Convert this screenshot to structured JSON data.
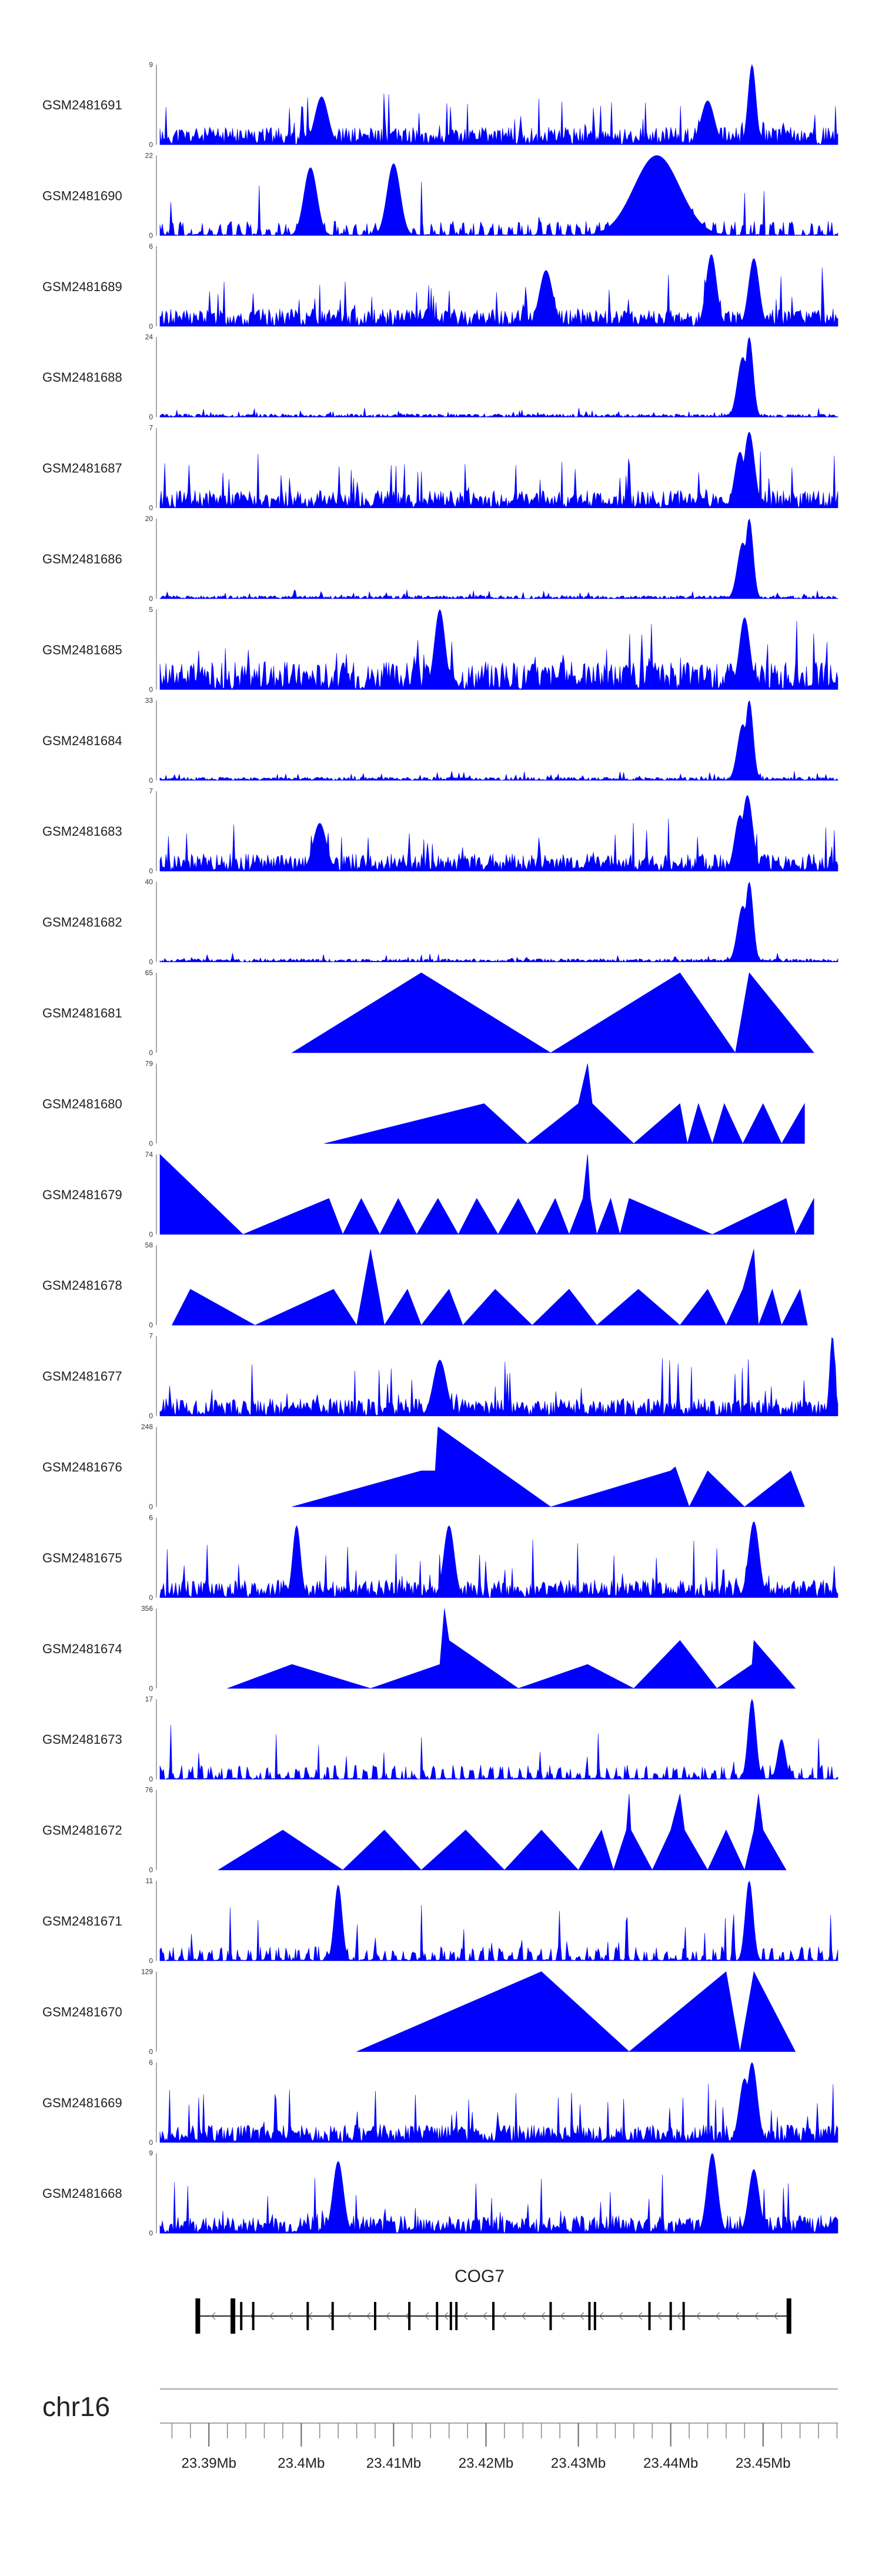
{
  "chart_data": {
    "type": "area",
    "title": "",
    "chromosome": "chr16",
    "x_range_mb": [
      23.3847,
      23.4581
    ],
    "series_color": "#0000ff",
    "tracks": [
      {
        "name": "GSM2481691",
        "max": 9,
        "style": "dense",
        "seed": 11,
        "peaks": [
          [
            23.4488,
            1.0,
            0.0006
          ],
          [
            23.444,
            0.55,
            0.001
          ],
          [
            23.4022,
            0.6,
            0.001
          ]
        ]
      },
      {
        "name": "GSM2481690",
        "max": 22,
        "style": "sparse",
        "seed": 12,
        "peaks": [
          [
            23.4385,
            1.0,
            0.0035
          ],
          [
            23.41,
            0.9,
            0.001
          ],
          [
            23.401,
            0.85,
            0.001
          ]
        ]
      },
      {
        "name": "GSM2481689",
        "max": 6,
        "style": "dense",
        "seed": 13,
        "peaks": [
          [
            23.4444,
            0.9,
            0.0008
          ],
          [
            23.449,
            0.85,
            0.0008
          ],
          [
            23.4265,
            0.7,
            0.001
          ]
        ]
      },
      {
        "name": "GSM2481688",
        "max": 24,
        "style": "dense_low",
        "seed": 14,
        "peaks": [
          [
            23.4485,
            1.0,
            0.0006
          ],
          [
            23.4478,
            0.75,
            0.0008
          ]
        ]
      },
      {
        "name": "GSM2481687",
        "max": 7,
        "style": "dense",
        "seed": 15,
        "peaks": [
          [
            23.4485,
            0.95,
            0.0008
          ],
          [
            23.4475,
            0.7,
            0.0008
          ]
        ]
      },
      {
        "name": "GSM2481686",
        "max": 20,
        "style": "dense_low",
        "seed": 16,
        "peaks": [
          [
            23.4485,
            1.0,
            0.0006
          ],
          [
            23.4478,
            0.7,
            0.0008
          ]
        ]
      },
      {
        "name": "GSM2481685",
        "max": 5,
        "style": "dense_high",
        "seed": 17,
        "peaks": [
          [
            23.415,
            1.0,
            0.0008
          ],
          [
            23.448,
            0.9,
            0.0008
          ]
        ]
      },
      {
        "name": "GSM2481684",
        "max": 33,
        "style": "dense_low",
        "seed": 18,
        "peaks": [
          [
            23.4485,
            1.0,
            0.0006
          ],
          [
            23.4478,
            0.7,
            0.0008
          ]
        ]
      },
      {
        "name": "GSM2481683",
        "max": 7,
        "style": "dense",
        "seed": 19,
        "peaks": [
          [
            23.4483,
            0.95,
            0.0008
          ],
          [
            23.4475,
            0.7,
            0.0008
          ],
          [
            23.402,
            0.6,
            0.001
          ]
        ]
      },
      {
        "name": "GSM2481682",
        "max": 40,
        "style": "dense_low",
        "seed": 20,
        "peaks": [
          [
            23.4485,
            1.0,
            0.0006
          ],
          [
            23.4478,
            0.7,
            0.0008
          ]
        ]
      },
      {
        "name": "GSM2481681",
        "max": 65,
        "style": "triangles",
        "points": [
          [
            23.399,
            0
          ],
          [
            23.413,
            1.0
          ],
          [
            23.427,
            0
          ],
          [
            23.441,
            1.0
          ],
          [
            23.447,
            0
          ],
          [
            23.4485,
            1.0
          ],
          [
            23.4555,
            0
          ]
        ]
      },
      {
        "name": "GSM2481680",
        "max": 79,
        "style": "triangles",
        "points": [
          [
            23.4025,
            0
          ],
          [
            23.4198,
            0.5
          ],
          [
            23.4245,
            0
          ],
          [
            23.43,
            0.5
          ],
          [
            23.431,
            1.0
          ],
          [
            23.4315,
            0.5
          ],
          [
            23.436,
            0
          ],
          [
            23.441,
            0.5
          ],
          [
            23.4418,
            0
          ],
          [
            23.443,
            0.5
          ],
          [
            23.4445,
            0
          ],
          [
            23.4458,
            0.5
          ],
          [
            23.4478,
            0
          ],
          [
            23.45,
            0.5
          ],
          [
            23.452,
            0
          ],
          [
            23.4545,
            0.5
          ],
          [
            23.4545,
            0
          ]
        ]
      },
      {
        "name": "GSM2481679",
        "max": 74,
        "style": "triangles",
        "points": [
          [
            23.3847,
            1.0
          ],
          [
            23.3937,
            0
          ],
          [
            23.403,
            0.45
          ],
          [
            23.4045,
            0
          ],
          [
            23.4065,
            0.45
          ],
          [
            23.4085,
            0
          ],
          [
            23.4105,
            0.45
          ],
          [
            23.4125,
            0
          ],
          [
            23.4148,
            0.45
          ],
          [
            23.417,
            0
          ],
          [
            23.419,
            0.45
          ],
          [
            23.4213,
            0
          ],
          [
            23.4235,
            0.45
          ],
          [
            23.4255,
            0
          ],
          [
            23.4275,
            0.45
          ],
          [
            23.429,
            0
          ],
          [
            23.4305,
            0.45
          ],
          [
            23.431,
            1.0
          ],
          [
            23.4313,
            0.45
          ],
          [
            23.432,
            0
          ],
          [
            23.4335,
            0.45
          ],
          [
            23.4345,
            0
          ],
          [
            23.4355,
            0.45
          ],
          [
            23.4445,
            0
          ],
          [
            23.4525,
            0.45
          ],
          [
            23.4535,
            0
          ],
          [
            23.4555,
            0.45
          ],
          [
            23.4555,
            0
          ]
        ]
      },
      {
        "name": "GSM2481678",
        "max": 58,
        "style": "triangles",
        "points": [
          [
            23.386,
            0
          ],
          [
            23.388,
            0.45
          ],
          [
            23.395,
            0
          ],
          [
            23.4035,
            0.45
          ],
          [
            23.406,
            0
          ],
          [
            23.4075,
            0.95
          ],
          [
            23.409,
            0
          ],
          [
            23.4115,
            0.45
          ],
          [
            23.413,
            0
          ],
          [
            23.416,
            0.45
          ],
          [
            23.4175,
            0
          ],
          [
            23.421,
            0.45
          ],
          [
            23.425,
            0
          ],
          [
            23.429,
            0.45
          ],
          [
            23.432,
            0
          ],
          [
            23.4365,
            0.45
          ],
          [
            23.441,
            0
          ],
          [
            23.444,
            0.45
          ],
          [
            23.446,
            0
          ],
          [
            23.4478,
            0.45
          ],
          [
            23.449,
            0.95
          ],
          [
            23.4495,
            0
          ],
          [
            23.451,
            0.45
          ],
          [
            23.452,
            0
          ],
          [
            23.454,
            0.45
          ],
          [
            23.4548,
            0
          ]
        ]
      },
      {
        "name": "GSM2481677",
        "max": 7,
        "style": "dense",
        "seed": 21,
        "peaks": [
          [
            23.4575,
            1.0,
            0.0004
          ],
          [
            23.415,
            0.7,
            0.001
          ]
        ]
      },
      {
        "name": "GSM2481676",
        "max": 248,
        "style": "triangles",
        "points": [
          [
            23.399,
            0
          ],
          [
            23.413,
            0.45
          ],
          [
            23.4145,
            0.45
          ],
          [
            23.4148,
            1.0
          ],
          [
            23.427,
            0
          ],
          [
            23.44,
            0.45
          ],
          [
            23.4405,
            0.5
          ],
          [
            23.442,
            0
          ],
          [
            23.444,
            0.45
          ],
          [
            23.448,
            0
          ],
          [
            23.453,
            0.45
          ],
          [
            23.4545,
            0
          ]
        ]
      },
      {
        "name": "GSM2481675",
        "max": 6,
        "style": "dense",
        "seed": 22,
        "peaks": [
          [
            23.449,
            0.95,
            0.0008
          ],
          [
            23.3995,
            0.9,
            0.0006
          ],
          [
            23.416,
            0.9,
            0.0008
          ]
        ]
      },
      {
        "name": "GSM2481674",
        "max": 356,
        "style": "triangles",
        "points": [
          [
            23.392,
            0
          ],
          [
            23.399,
            0.3
          ],
          [
            23.4075,
            0
          ],
          [
            23.415,
            0.3
          ],
          [
            23.4155,
            1.0
          ],
          [
            23.416,
            0.6
          ],
          [
            23.4235,
            0
          ],
          [
            23.431,
            0.3
          ],
          [
            23.436,
            0
          ],
          [
            23.441,
            0.6
          ],
          [
            23.445,
            0
          ],
          [
            23.4488,
            0.3
          ],
          [
            23.449,
            0.6
          ],
          [
            23.4535,
            0
          ]
        ]
      },
      {
        "name": "GSM2481673",
        "max": 17,
        "style": "sparse",
        "seed": 23,
        "peaks": [
          [
            23.4488,
            1.0,
            0.0006
          ],
          [
            23.452,
            0.5,
            0.0006
          ]
        ]
      },
      {
        "name": "GSM2481672",
        "max": 76,
        "style": "triangles",
        "points": [
          [
            23.391,
            0
          ],
          [
            23.398,
            0.5
          ],
          [
            23.4045,
            0
          ],
          [
            23.409,
            0.5
          ],
          [
            23.413,
            0
          ],
          [
            23.4178,
            0.5
          ],
          [
            23.422,
            0
          ],
          [
            23.426,
            0.5
          ],
          [
            23.43,
            0
          ],
          [
            23.4325,
            0.5
          ],
          [
            23.4338,
            0
          ],
          [
            23.4352,
            0.5
          ],
          [
            23.4355,
            0.95
          ],
          [
            23.4357,
            0.5
          ],
          [
            23.438,
            0
          ],
          [
            23.44,
            0.5
          ],
          [
            23.441,
            0.95
          ],
          [
            23.4415,
            0.5
          ],
          [
            23.444,
            0
          ],
          [
            23.446,
            0.5
          ],
          [
            23.448,
            0
          ],
          [
            23.449,
            0.5
          ],
          [
            23.4495,
            0.95
          ],
          [
            23.45,
            0.5
          ],
          [
            23.4525,
            0
          ]
        ]
      },
      {
        "name": "GSM2481671",
        "max": 11,
        "style": "sparse",
        "seed": 24,
        "peaks": [
          [
            23.4485,
            1.0,
            0.0006
          ],
          [
            23.404,
            0.95,
            0.0006
          ]
        ]
      },
      {
        "name": "GSM2481670",
        "max": 129,
        "style": "triangles",
        "points": [
          [
            23.406,
            0
          ],
          [
            23.426,
            1.0
          ],
          [
            23.4355,
            0
          ],
          [
            23.446,
            1.0
          ],
          [
            23.4475,
            0
          ],
          [
            23.449,
            1.0
          ],
          [
            23.4535,
            0
          ]
        ]
      },
      {
        "name": "GSM2481669",
        "max": 6,
        "style": "dense",
        "seed": 25,
        "peaks": [
          [
            23.4488,
            1.0,
            0.0008
          ],
          [
            23.448,
            0.8,
            0.0008
          ]
        ]
      },
      {
        "name": "GSM2481668",
        "max": 9,
        "style": "dense",
        "seed": 26,
        "peaks": [
          [
            23.4445,
            1.0,
            0.0008
          ],
          [
            23.404,
            0.9,
            0.0008
          ],
          [
            23.449,
            0.8,
            0.0008
          ]
        ]
      }
    ],
    "gene": {
      "name": "COG7",
      "strand": "-",
      "start": 23.3888,
      "end": 23.453,
      "exons": [
        23.3888,
        23.3926,
        23.3935,
        23.3948,
        23.4007,
        23.4034,
        23.408,
        23.4117,
        23.4147,
        23.4162,
        23.4168,
        23.4208,
        23.427,
        23.4312,
        23.4318,
        23.4377,
        23.44,
        23.4414,
        23.4528
      ]
    },
    "x_ticks_labeled": [
      {
        "value": 23.39,
        "label": "23.39Mb"
      },
      {
        "value": 23.4,
        "label": "23.4Mb"
      },
      {
        "value": 23.41,
        "label": "23.41Mb"
      },
      {
        "value": 23.42,
        "label": "23.42Mb"
      },
      {
        "value": 23.43,
        "label": "23.43Mb"
      },
      {
        "value": 23.44,
        "label": "23.44Mb"
      },
      {
        "value": 23.45,
        "label": "23.45Mb"
      }
    ],
    "x_minor_tick_step_mb": 0.002
  }
}
